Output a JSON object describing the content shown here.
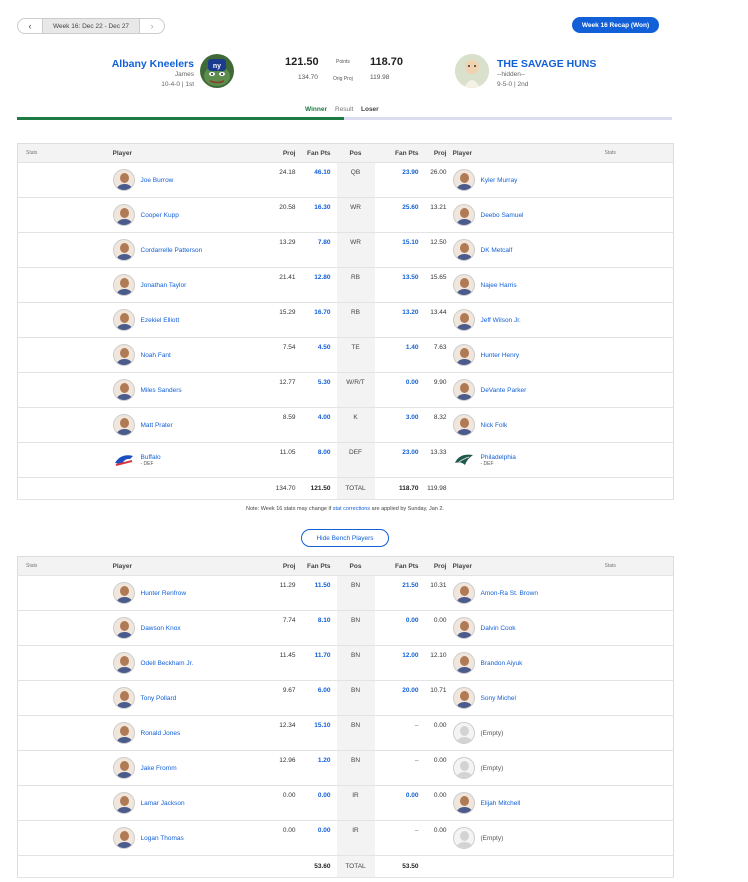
{
  "week_nav": {
    "prev": "‹",
    "label": "Week 16: Dec 22 - Dec 27",
    "next": "›"
  },
  "recap_button": "Week 16 Recap (Won)",
  "home": {
    "name": "Albany Kneelers",
    "manager": "James",
    "record": "10-4-0 | 1st",
    "points": "121.50",
    "proj": "134.70"
  },
  "away": {
    "name": "THE SAVAGE HUNS",
    "manager": "--hidden--",
    "record": "9-5-0 | 2nd",
    "points": "118.70",
    "proj": "119.98"
  },
  "mid_labels": {
    "points": "Points",
    "orig_proj": "Orig Proj"
  },
  "result": {
    "winner": "Winner",
    "result": "Result",
    "loser": "Loser"
  },
  "headers": {
    "stats": "Stats",
    "player": "Player",
    "proj": "Proj",
    "fan_pts": "Fan Pts",
    "pos": "Pos"
  },
  "starters": [
    {
      "pos": "QB",
      "l_name": "Joe Burrow",
      "l_proj": "24.18",
      "l_pts": "46.10",
      "r_name": "Kyler Murray",
      "r_proj": "26.00",
      "r_pts": "23.90"
    },
    {
      "pos": "WR",
      "l_name": "Cooper Kupp",
      "l_proj": "20.58",
      "l_pts": "16.30",
      "r_name": "Deebo Samuel",
      "r_proj": "13.21",
      "r_pts": "25.60"
    },
    {
      "pos": "WR",
      "l_name": "Cordarrelle Patterson",
      "l_proj": "13.29",
      "l_pts": "7.80",
      "r_name": "DK Metcalf",
      "r_proj": "12.50",
      "r_pts": "15.10"
    },
    {
      "pos": "RB",
      "l_name": "Jonathan Taylor",
      "l_proj": "21.41",
      "l_pts": "12.80",
      "r_name": "Najee Harris",
      "r_proj": "15.65",
      "r_pts": "13.50"
    },
    {
      "pos": "RB",
      "l_name": "Ezekiel Elliott",
      "l_proj": "15.29",
      "l_pts": "16.70",
      "r_name": "Jeff Wilson Jr.",
      "r_proj": "13.44",
      "r_pts": "13.20"
    },
    {
      "pos": "TE",
      "l_name": "Noah Fant",
      "l_proj": "7.54",
      "l_pts": "4.50",
      "r_name": "Hunter Henry",
      "r_proj": "7.63",
      "r_pts": "1.40"
    },
    {
      "pos": "W/R/T",
      "l_name": "Miles Sanders",
      "l_proj": "12.77",
      "l_pts": "5.30",
      "r_name": "DeVante Parker",
      "r_proj": "9.90",
      "r_pts": "0.00"
    },
    {
      "pos": "K",
      "l_name": "Matt Prater",
      "l_proj": "8.59",
      "l_pts": "4.00",
      "r_name": "Nick Folk",
      "r_proj": "8.32",
      "r_pts": "3.00"
    },
    {
      "pos": "DEF",
      "l_name": "Buffalo",
      "l_def": "- DEF",
      "l_proj": "11.05",
      "l_pts": "8.00",
      "r_name": "Philadelphia",
      "r_def": "- DEF",
      "r_proj": "13.33",
      "r_pts": "23.00"
    }
  ],
  "starters_total": {
    "l_proj": "134.70",
    "l_pts": "121.50",
    "label": "TOTAL",
    "r_pts": "118.70",
    "r_proj": "119.98"
  },
  "note": {
    "pre": "Note: Week 16 stats may change if ",
    "link": "stat corrections",
    "post": " are applied by Sunday, Jan 2."
  },
  "bench_button": "Hide Bench Players",
  "bench": [
    {
      "pos": "BN",
      "l_name": "Hunter Renfrow",
      "l_proj": "11.29",
      "l_pts": "11.50",
      "r_name": "Amon-Ra St. Brown",
      "r_proj": "10.31",
      "r_pts": "21.50"
    },
    {
      "pos": "BN",
      "l_name": "Dawson Knox",
      "l_proj": "7.74",
      "l_pts": "8.10",
      "r_name": "Dalvin Cook",
      "r_proj": "0.00",
      "r_pts": "0.00"
    },
    {
      "pos": "BN",
      "l_name": "Odell Beckham Jr.",
      "l_proj": "11.45",
      "l_pts": "11.70",
      "r_name": "Brandon Aiyuk",
      "r_proj": "12.10",
      "r_pts": "12.00"
    },
    {
      "pos": "BN",
      "l_name": "Tony Pollard",
      "l_proj": "9.67",
      "l_pts": "6.00",
      "r_name": "Sony Michel",
      "r_proj": "10.71",
      "r_pts": "20.00"
    },
    {
      "pos": "BN",
      "l_name": "Ronald Jones",
      "l_proj": "12.34",
      "l_pts": "15.10",
      "r_name": "(Empty)",
      "r_proj": "0.00",
      "r_pts": "–",
      "r_empty": true
    },
    {
      "pos": "BN",
      "l_name": "Jake Fromm",
      "l_proj": "12.96",
      "l_pts": "1.20",
      "r_name": "(Empty)",
      "r_proj": "0.00",
      "r_pts": "–",
      "r_empty": true
    },
    {
      "pos": "IR",
      "l_name": "Lamar Jackson",
      "l_proj": "0.00",
      "l_pts": "0.00",
      "r_name": "Elijah Mitchell",
      "r_proj": "0.00",
      "r_pts": "0.00"
    },
    {
      "pos": "IR",
      "l_name": "Logan Thomas",
      "l_proj": "0.00",
      "l_pts": "0.00",
      "r_name": "(Empty)",
      "r_proj": "0.00",
      "r_pts": "–",
      "r_empty": true
    }
  ],
  "bench_total": {
    "l_pts": "53.60",
    "label": "TOTAL",
    "r_pts": "53.50"
  }
}
